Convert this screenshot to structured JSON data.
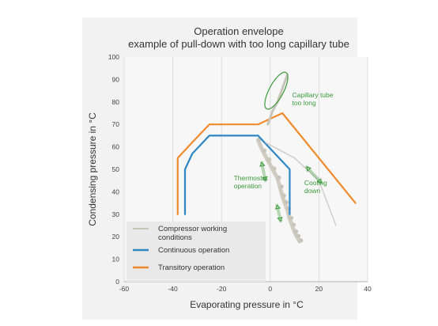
{
  "chart_data": {
    "type": "line",
    "title": "Operation envelope",
    "subtitle": "example of pull-down with too long capillary tube",
    "xlabel": "Evaporating pressure in °C",
    "ylabel": "Condensing pressure in °C",
    "xlim": [
      -60,
      40
    ],
    "ylim": [
      0,
      100
    ],
    "x_ticks": [
      -60,
      -40,
      -20,
      0,
      20,
      40
    ],
    "y_ticks": [
      0,
      10,
      20,
      30,
      40,
      50,
      60,
      70,
      80,
      90,
      100
    ],
    "y_tick_labels": [
      "0",
      "10",
      "20",
      "30",
      "40",
      "50",
      "60",
      "70",
      "80",
      "90",
      "100"
    ],
    "grid": "vertical",
    "legend_position": "bottom-left",
    "series": [
      {
        "name": "Compressor working conditions",
        "color": "#c9c4b8",
        "x": [
          -5,
          -3,
          -1,
          1,
          3,
          4,
          5,
          6,
          7,
          8,
          9,
          10,
          11,
          12
        ],
        "y": [
          63,
          58,
          54,
          50,
          46,
          42,
          38,
          35,
          32,
          28,
          25,
          22,
          20,
          18
        ]
      },
      {
        "name": "Continuous operation",
        "color": "#2f86c4",
        "x": [
          -35,
          -35,
          -32,
          -25,
          -5,
          8,
          8
        ],
        "y": [
          30,
          50,
          57,
          65,
          65,
          50,
          30
        ]
      },
      {
        "name": "Transitory operation",
        "color": "#f08a2c",
        "x": [
          -38,
          -38,
          -32,
          -25,
          -5,
          5,
          35
        ],
        "y": [
          30,
          55,
          62,
          70,
          70,
          75,
          35
        ]
      }
    ],
    "annotations": [
      {
        "text_lines": [
          "Capillary tube",
          "too long"
        ],
        "x": 9,
        "y": 82,
        "color": "#3a9a3a"
      },
      {
        "text_lines": [
          "Thermostat",
          "operation"
        ],
        "x": -15,
        "y": 45,
        "color": "#3a9a3a"
      },
      {
        "text_lines": [
          "Cooling",
          "down"
        ],
        "x": 14,
        "y": 43,
        "color": "#3a9a3a"
      }
    ]
  }
}
